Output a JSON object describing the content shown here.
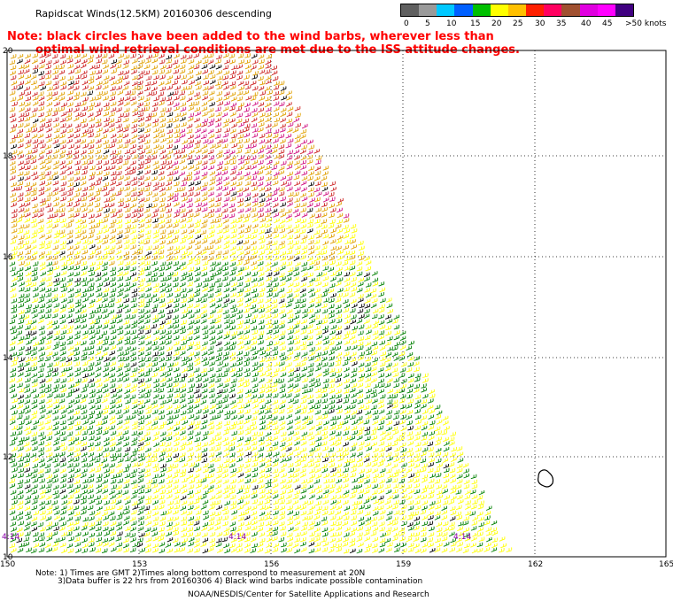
{
  "header": {
    "title": "Rapidscat Winds(12.5KM) 20160306 descending",
    "note_line1": "Note: black circles have been added to the wind barbs, wherever less than",
    "note_line2": "optimal wind retrieval conditions are met due to the ISS attitude changes."
  },
  "legend": {
    "labels": [
      "0",
      "5",
      "10",
      "15",
      "20",
      "25",
      "30",
      "35",
      "40",
      "45",
      ">50 knots"
    ],
    "colors": [
      "#606060",
      "#9a9a9a",
      "#00c8ff",
      "#0060ff",
      "#00c000",
      "#ffff00",
      "#ffc000",
      "#ff2000",
      "#ff0060",
      "#a05030",
      "#e000e0",
      "#ff00ff",
      "#400080"
    ]
  },
  "map": {
    "lat_labels": [
      "20",
      "18",
      "16",
      "14",
      "12",
      "10"
    ],
    "lon_labels": [
      "150",
      "153",
      "156",
      "159",
      "162",
      "165"
    ],
    "time_labels": [
      "4:14",
      "4:14",
      "4:14"
    ],
    "barb_colors": {
      "calm": "#000000",
      "green": "#008000",
      "yellow": "#ffff00",
      "orange": "#e0a000",
      "red": "#cc2222",
      "magenta": "#d01080"
    }
  },
  "footer": {
    "line1": "Note: 1) Times are GMT 2)Times along bottom correspond to measurement at 20N",
    "line2": "3)Data buffer is 22 hrs from 20160306 4) Black wind barbs indicate possible contamination",
    "credit": "NOAA/NESDIS/Center for Satellite Applications and Research"
  }
}
